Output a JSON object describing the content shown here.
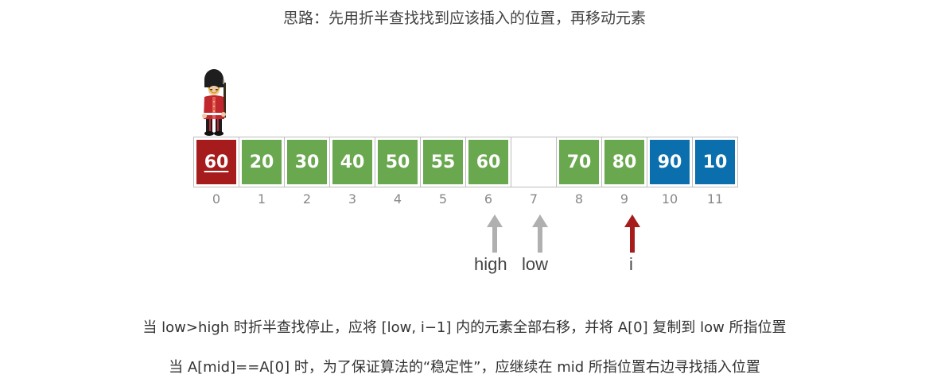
{
  "title": "思路：先用折半查找找到应该插入的位置，再移动元素",
  "array": {
    "cells": [
      {
        "value": "60",
        "color": "#a61c1c"
      },
      {
        "value": "20",
        "color": "#6aa84f"
      },
      {
        "value": "30",
        "color": "#6aa84f"
      },
      {
        "value": "40",
        "color": "#6aa84f"
      },
      {
        "value": "50",
        "color": "#6aa84f"
      },
      {
        "value": "55",
        "color": "#6aa84f"
      },
      {
        "value": "60",
        "color": "#6aa84f"
      },
      {
        "value": "",
        "color": "#ffffff"
      },
      {
        "value": "70",
        "color": "#6aa84f"
      },
      {
        "value": "80",
        "color": "#6aa84f"
      },
      {
        "value": "90",
        "color": "#0b6fae"
      },
      {
        "value": "10",
        "color": "#0b6fae"
      }
    ],
    "indices": [
      "0",
      "1",
      "2",
      "3",
      "4",
      "5",
      "6",
      "7",
      "8",
      "9",
      "10",
      "11"
    ]
  },
  "pointers": {
    "high": {
      "label": "high",
      "index": 6,
      "color": "#b0b0b0"
    },
    "low": {
      "label": "low",
      "index": 7,
      "color": "#b0b0b0"
    },
    "i": {
      "label": "i",
      "index": 9,
      "color": "#a61c1c"
    }
  },
  "notes": {
    "line1": "当 low>high 时折半查找停止，应将 [low, i−1] 内的元素全部右移，并将 A[0] 复制到 low 所指位置",
    "line2": "当 A[mid]==A[0] 时，为了保证算法的“稳定性”，应继续在 mid 所指位置右边寻找插入位置"
  }
}
